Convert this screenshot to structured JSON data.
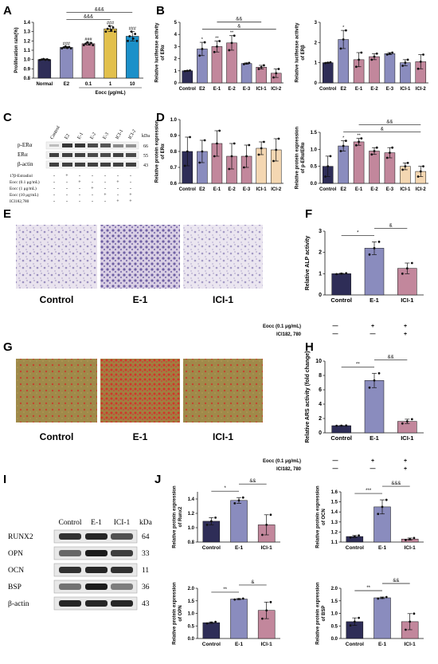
{
  "panel_labels": [
    "A",
    "B",
    "C",
    "D",
    "E",
    "F",
    "G",
    "H",
    "I",
    "J"
  ],
  "colors": {
    "navy": "#2e2d57",
    "lavender": "#8a8cbe",
    "pink": "#c2879c",
    "cream": "#f4d7b2",
    "cyan": "#1c90c9",
    "gold": "#e2c04c"
  },
  "blot_C": {
    "lanes": [
      "Control",
      "E2",
      "E-1",
      "E-2",
      "E-3",
      "ICI-1",
      "ICI-2"
    ],
    "kda_header": "kDa",
    "bands": [
      {
        "name": "p-ERα",
        "kda": "66"
      },
      {
        "name": "ERα",
        "kda": "55"
      },
      {
        "name": "β-actin",
        "kda": "43"
      }
    ],
    "treatments": [
      {
        "name": "17β-Estradiol",
        "marks": [
          "-",
          "+",
          "-",
          "-",
          "-",
          "-",
          "-"
        ]
      },
      {
        "name": "Eocc (0.1 μg/mL)",
        "marks": [
          "-",
          "-",
          "+",
          "-",
          "-",
          "+",
          "-"
        ]
      },
      {
        "name": "Eocc (1 μg/mL)",
        "marks": [
          "-",
          "-",
          "-",
          "+",
          "-",
          "-",
          "-"
        ]
      },
      {
        "name": "Eocc (10 μg/mL)",
        "marks": [
          "-",
          "-",
          "-",
          "-",
          "+",
          "-",
          "+"
        ]
      },
      {
        "name": "ICI182,780",
        "marks": [
          "-",
          "-",
          "-",
          "-",
          "-",
          "+",
          "+"
        ]
      }
    ]
  },
  "stain_E": {
    "labels": [
      "Control",
      "E-1",
      "ICI-1"
    ]
  },
  "stain_G": {
    "labels": [
      "Control",
      "E-1",
      "ICI-1"
    ]
  },
  "treat_rows": [
    {
      "name": "Eocc (0.1 μg/mL)",
      "marks": [
        "—",
        "+",
        "+"
      ]
    },
    {
      "name": "ICI182, 780",
      "marks": [
        "—",
        "—",
        "+"
      ]
    }
  ],
  "blot_I": {
    "lanes": [
      "Control",
      "E-1",
      "ICI-1"
    ],
    "kda_header": "kDa",
    "bands": [
      {
        "name": "RUNX2",
        "kda": "64"
      },
      {
        "name": "OPN",
        "kda": "33"
      },
      {
        "name": "OCN",
        "kda": "11"
      },
      {
        "name": "BSP",
        "kda": "36"
      },
      {
        "name": "β-actin",
        "kda": "43"
      }
    ]
  },
  "chart_data": [
    {
      "id": "A",
      "type": "bar",
      "ylabel": "Proliferation rate(%)",
      "ylim": [
        0.8,
        1.4
      ],
      "yticks": [
        "0.8",
        "0.9",
        "1.0",
        "1.1",
        "1.2",
        "1.3",
        "1.4"
      ],
      "categories": [
        "Normal",
        "E2",
        "0.1",
        "1",
        "10"
      ],
      "values": [
        1.0,
        1.13,
        1.17,
        1.33,
        1.25
      ],
      "errors": [
        0.005,
        0.01,
        0.015,
        0.03,
        0.05
      ],
      "colors": [
        "#2e2d57",
        "#8a8cbe",
        "#c2879c",
        "#e2c04c",
        "#1c90c9"
      ],
      "stars": [
        "",
        "###",
        "###",
        "###",
        "###"
      ],
      "xlabel": "Eocc (μg/mL)",
      "xlabel_span": [
        2,
        4
      ],
      "brackets": [
        {
          "from": 1,
          "to": 3,
          "label": "&&&"
        },
        {
          "from": 1,
          "to": 4,
          "label": "&&&"
        }
      ]
    },
    {
      "id": "B1",
      "type": "bar",
      "ylabel": "Relative luciferase activity of ERα",
      "ylim": [
        0,
        5
      ],
      "yticks": [
        "0",
        "1",
        "2",
        "3",
        "4",
        "5"
      ],
      "categories": [
        "Control",
        "E2",
        "E-1",
        "E-2",
        "E-3",
        "ICI-1",
        "ICI-2"
      ],
      "values": [
        1.0,
        2.8,
        3.0,
        3.3,
        1.6,
        1.3,
        0.8
      ],
      "errors": [
        0.03,
        0.55,
        0.45,
        0.6,
        0.05,
        0.15,
        0.35
      ],
      "colors": [
        "#2e2d57",
        "#8a8cbe",
        "#c2879c",
        "#c2879c",
        "#8a8cbe",
        "#c2879c",
        "#c2879c"
      ],
      "stars": [
        "",
        "*",
        "**",
        "**",
        "",
        "",
        ""
      ],
      "brackets": [
        {
          "from": 1,
          "to": 6,
          "label": "&"
        },
        {
          "from": 2,
          "to": 5,
          "label": "&&"
        }
      ]
    },
    {
      "id": "B2",
      "type": "bar",
      "ylabel": "Relative luciferase activity of ERβ",
      "ylim": [
        0,
        3
      ],
      "yticks": [
        "0",
        "1",
        "2",
        "3"
      ],
      "categories": [
        "Control",
        "E2",
        "E-1",
        "E-2",
        "E-3",
        "ICI-1",
        "ICI-2"
      ],
      "values": [
        1.0,
        2.15,
        1.15,
        1.3,
        1.45,
        1.0,
        1.05
      ],
      "errors": [
        0.02,
        0.45,
        0.35,
        0.15,
        0.05,
        0.15,
        0.35
      ],
      "colors": [
        "#2e2d57",
        "#8a8cbe",
        "#c2879c",
        "#c2879c",
        "#8a8cbe",
        "#8a8cbe",
        "#c2879c"
      ],
      "stars": [
        "",
        "*",
        "",
        "",
        "",
        "",
        ""
      ],
      "brackets": []
    },
    {
      "id": "D1",
      "type": "bar",
      "ylabel": "Relative protein expression of ERα",
      "ylim": [
        0.6,
        1.0
      ],
      "yticks": [
        "0.6",
        "0.7",
        "0.8",
        "0.9",
        "1.0"
      ],
      "categories": [
        "Control",
        "E2",
        "E-1",
        "E-2",
        "E-3",
        "ICI-1",
        "ICI-2"
      ],
      "values": [
        0.8,
        0.8,
        0.85,
        0.77,
        0.77,
        0.82,
        0.81
      ],
      "errors": [
        0.09,
        0.07,
        0.08,
        0.08,
        0.07,
        0.04,
        0.07
      ],
      "colors": [
        "#2e2d57",
        "#8a8cbe",
        "#c2879c",
        "#c2879c",
        "#c2879c",
        "#f4d7b2",
        "#f4d7b2"
      ],
      "stars": [
        "",
        "",
        "",
        "",
        "",
        "",
        ""
      ],
      "brackets": []
    },
    {
      "id": "D2",
      "type": "bar",
      "ylabel": "Relative protein expression of p-ERα/ERα",
      "ylim": [
        0,
        1.5
      ],
      "yticks": [
        "0.0",
        "0.5",
        "1.0",
        "1.5"
      ],
      "categories": [
        "Control",
        "E2",
        "E-1",
        "E-2",
        "E-3",
        "ICI-1",
        "ICI-2"
      ],
      "values": [
        0.5,
        1.1,
        1.22,
        0.95,
        0.9,
        0.5,
        0.35
      ],
      "errors": [
        0.3,
        0.15,
        0.1,
        0.1,
        0.15,
        0.1,
        0.15
      ],
      "colors": [
        "#2e2d57",
        "#8a8cbe",
        "#c2879c",
        "#c2879c",
        "#c2879c",
        "#f4d7b2",
        "#f4d7b2"
      ],
      "stars": [
        "",
        "*",
        "**",
        "",
        "",
        "",
        ""
      ],
      "brackets": [
        {
          "from": 1,
          "to": 6,
          "label": "&"
        },
        {
          "from": 2,
          "to": 6,
          "label": "&&"
        }
      ]
    },
    {
      "id": "F",
      "type": "bar",
      "ylabel": "Relative ALP activity",
      "ylim": [
        0,
        3
      ],
      "yticks": [
        "0",
        "1",
        "2",
        "3"
      ],
      "categories": [
        "Control",
        "E-1",
        "ICI-1"
      ],
      "values": [
        1.0,
        2.2,
        1.25
      ],
      "errors": [
        0.02,
        0.3,
        0.25
      ],
      "colors": [
        "#2e2d57",
        "#8a8cbe",
        "#c2879c"
      ],
      "stars": [
        "",
        "",
        ""
      ],
      "brackets": [
        {
          "from": 0,
          "to": 1,
          "label": "*"
        },
        {
          "from": 1,
          "to": 2,
          "label": "&"
        }
      ]
    },
    {
      "id": "H",
      "type": "bar",
      "ylabel": "Relative ARS activity (fold change)",
      "ylim": [
        0,
        10
      ],
      "yticks": [
        "0",
        "2",
        "4",
        "6",
        "8",
        "10"
      ],
      "categories": [
        "Control",
        "E-1",
        "ICI-1"
      ],
      "values": [
        1.0,
        7.3,
        1.6
      ],
      "errors": [
        0.02,
        1.0,
        0.3
      ],
      "colors": [
        "#2e2d57",
        "#8a8cbe",
        "#c2879c"
      ],
      "stars": [
        "",
        "",
        ""
      ],
      "brackets": [
        {
          "from": 0,
          "to": 1,
          "label": "**"
        },
        {
          "from": 1,
          "to": 2,
          "label": "&&"
        }
      ]
    },
    {
      "id": "J1",
      "type": "bar",
      "ylabel": "Relative protein expression of Runx2",
      "ylim": [
        0.8,
        1.5
      ],
      "yticks": [
        "0.8",
        "1.0",
        "1.2",
        "1.4"
      ],
      "categories": [
        "Control",
        "E-1",
        "ICI-1"
      ],
      "values": [
        1.09,
        1.38,
        1.04
      ],
      "errors": [
        0.05,
        0.04,
        0.14
      ],
      "colors": [
        "#2e2d57",
        "#8a8cbe",
        "#c2879c"
      ],
      "stars": [
        "",
        "",
        ""
      ],
      "brackets": [
        {
          "from": 0,
          "to": 1,
          "label": "*"
        },
        {
          "from": 1,
          "to": 2,
          "label": "&&"
        }
      ]
    },
    {
      "id": "J2",
      "type": "bar",
      "ylabel": "Relative protein expression of OCN",
      "ylim": [
        1.1,
        1.6
      ],
      "yticks": [
        "1.1",
        "1.2",
        "1.3",
        "1.4",
        "1.5",
        "1.6"
      ],
      "categories": [
        "Control",
        "E-1",
        "ICI-1"
      ],
      "values": [
        1.155,
        1.45,
        1.13
      ],
      "errors": [
        0.01,
        0.07,
        0.01
      ],
      "colors": [
        "#2e2d57",
        "#8a8cbe",
        "#c2879c"
      ],
      "stars": [
        "",
        "",
        ""
      ],
      "brackets": [
        {
          "from": 0,
          "to": 1,
          "label": "***"
        },
        {
          "from": 1,
          "to": 2,
          "label": "&&&"
        }
      ]
    },
    {
      "id": "J3",
      "type": "bar",
      "ylabel": "Relative protein expression of OPN",
      "ylim": [
        0,
        2.0
      ],
      "yticks": [
        "0.0",
        "0.5",
        "1.0",
        "1.5",
        "2.0"
      ],
      "categories": [
        "Control",
        "E-1",
        "ICI-1"
      ],
      "values": [
        0.63,
        1.57,
        1.12
      ],
      "errors": [
        0.03,
        0.02,
        0.33
      ],
      "colors": [
        "#2e2d57",
        "#8a8cbe",
        "#c2879c"
      ],
      "stars": [
        "",
        "",
        ""
      ],
      "brackets": [
        {
          "from": 0,
          "to": 1,
          "label": "**"
        },
        {
          "from": 1,
          "to": 2,
          "label": "&"
        }
      ]
    },
    {
      "id": "J4",
      "type": "bar",
      "ylabel": "Relative protein expression of BSP",
      "ylim": [
        0,
        2.0
      ],
      "yticks": [
        "0.0",
        "0.5",
        "1.0",
        "1.5",
        "2.0"
      ],
      "categories": [
        "Control",
        "E-1",
        "ICI-1"
      ],
      "values": [
        0.67,
        1.62,
        0.67
      ],
      "errors": [
        0.15,
        0.03,
        0.32
      ],
      "colors": [
        "#2e2d57",
        "#8a8cbe",
        "#c2879c"
      ],
      "stars": [
        "",
        "",
        ""
      ],
      "brackets": [
        {
          "from": 0,
          "to": 1,
          "label": "**"
        },
        {
          "from": 1,
          "to": 2,
          "label": "&&"
        }
      ]
    }
  ]
}
